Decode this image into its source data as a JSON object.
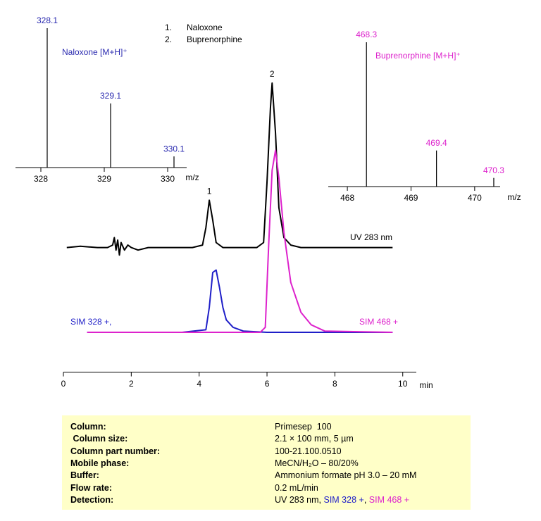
{
  "chart_data": [
    {
      "type": "line",
      "xlabel": "min",
      "xlim": [
        0,
        10.4
      ],
      "ylim": [
        -16,
        110
      ],
      "xticks": [
        0,
        2,
        4,
        6,
        8,
        10
      ],
      "series": [
        {
          "name": "UV 283 nm",
          "color": "#000000",
          "x": [
            0.1,
            0.5,
            1.0,
            1.3,
            1.45,
            1.5,
            1.55,
            1.6,
            1.65,
            1.7,
            1.8,
            1.9,
            2.0,
            2.2,
            2.5,
            3.0,
            3.8,
            4.1,
            4.2,
            4.3,
            4.4,
            4.5,
            4.7,
            5.0,
            5.7,
            5.9,
            6.0,
            6.1,
            6.15,
            6.25,
            6.35,
            6.5,
            6.7,
            7.0,
            7.5,
            8.5,
            9.7
          ],
          "values": [
            34,
            34.5,
            34,
            34,
            35,
            38,
            33,
            37,
            31,
            36,
            33,
            35,
            34,
            33,
            34,
            34,
            34,
            35,
            42,
            53,
            45,
            36,
            34,
            34,
            34,
            36,
            60,
            90,
            100,
            80,
            50,
            38,
            35,
            34,
            34,
            34,
            34
          ]
        },
        {
          "name": "SIM 328 +,",
          "color": "#1f1fc8",
          "x": [
            0.7,
            3.5,
            4.2,
            4.3,
            4.4,
            4.5,
            4.6,
            4.7,
            4.8,
            5.0,
            5.3,
            6.0,
            9.7
          ],
          "values": [
            0,
            0,
            1,
            10,
            24,
            25,
            18,
            10,
            5,
            2,
            0.5,
            0,
            0
          ]
        },
        {
          "name": "SIM 468 +",
          "color": "#dd22cc",
          "x": [
            0.7,
            5.8,
            5.95,
            6.05,
            6.15,
            6.25,
            6.35,
            6.5,
            6.7,
            7.0,
            7.3,
            7.7,
            9.7
          ],
          "values": [
            0,
            0,
            2,
            35,
            65,
            73,
            62,
            40,
            20,
            8,
            3,
            0.5,
            0
          ]
        }
      ],
      "peak_labels": [
        {
          "text": "1",
          "x": 4.3
        },
        {
          "text": "2",
          "x": 6.15
        }
      ],
      "peak_list": [
        {
          "label": "1.",
          "text": "Naloxone"
        },
        {
          "label": "2.",
          "text": "Buprenorphine"
        }
      ]
    },
    {
      "type": "stick",
      "title": "Naloxone [M+H]⁺",
      "color": "#2b2bb0",
      "xlabel": "m/z",
      "x": [
        328.1,
        329.1,
        330.1
      ],
      "values": [
        100,
        46,
        8
      ],
      "xlim": [
        327.6,
        330.3
      ],
      "ylim": [
        0,
        100
      ],
      "xticks": [
        328,
        329,
        330
      ]
    },
    {
      "type": "stick",
      "title": "Buprenorphine  [M+H]⁺",
      "color": "#dd22cc",
      "xlabel": "m/z",
      "x": [
        468.3,
        469.4,
        470.3
      ],
      "values": [
        100,
        25,
        6
      ],
      "xlim": [
        467.7,
        470.4
      ],
      "ylim": [
        0,
        100
      ],
      "xticks": [
        468,
        469,
        470
      ]
    }
  ],
  "conditions": {
    "rows": [
      {
        "label": "Column:",
        "parts": [
          {
            "text": "Primesep  100"
          }
        ]
      },
      {
        "label": " Column size:",
        "parts": [
          {
            "text": "2.1 × 100 mm, 5 µm"
          }
        ]
      },
      {
        "label": "Column part number:",
        "parts": [
          {
            "text": "100-21.100.0510"
          }
        ]
      },
      {
        "label": "Mobile phase:",
        "parts": [
          {
            "text": "MeCN/H₂O – 80/20%"
          }
        ]
      },
      {
        "label": "Buffer:",
        "parts": [
          {
            "text": "Ammonium formate pH 3.0 – 20 mM"
          }
        ]
      },
      {
        "label": "Flow rate:",
        "parts": [
          {
            "text": "0.2 mL/min"
          }
        ]
      },
      {
        "label": "Detection:",
        "parts": [
          {
            "text": "UV 283 nm, ",
            "color": "#000000"
          },
          {
            "text": "SIM 328 +",
            "color": "#1f1fc8"
          },
          {
            "text": ", ",
            "color": "#000000"
          },
          {
            "text": "SIM 468 +",
            "color": "#dd22cc"
          }
        ]
      }
    ]
  }
}
